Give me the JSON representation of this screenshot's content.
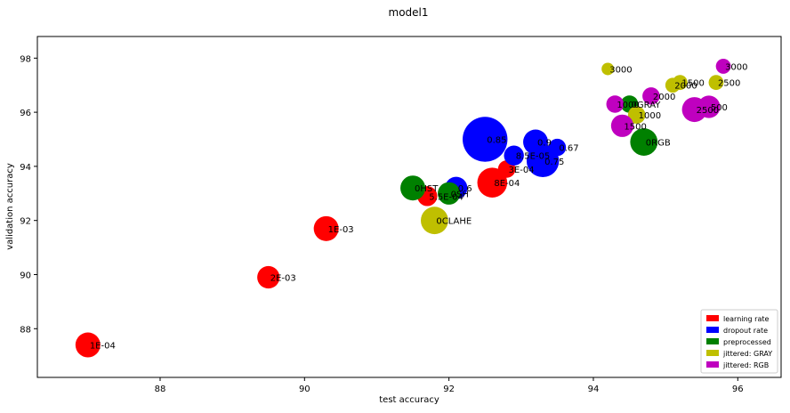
{
  "chart_data": {
    "type": "scatter",
    "title": "model1",
    "xlabel": "test accuracy",
    "ylabel": "validation accuracy",
    "xlim": [
      86.3,
      96.6
    ],
    "ylim": [
      86.2,
      98.8
    ],
    "xticks": [
      "88",
      "90",
      "92",
      "94",
      "96"
    ],
    "yticks": [
      "88",
      "90",
      "92",
      "94",
      "96",
      "98"
    ],
    "grid": false,
    "legend_position": "bottom-right",
    "series": [
      {
        "name": "learning rate",
        "color": "#ff0000",
        "points": [
          {
            "x": 87.0,
            "y": 87.4,
            "size": 1.0,
            "label": "1E-04"
          },
          {
            "x": 89.5,
            "y": 89.9,
            "size": 0.9,
            "label": "2E-03"
          },
          {
            "x": 90.3,
            "y": 91.7,
            "size": 1.0,
            "label": "1E-03"
          },
          {
            "x": 91.7,
            "y": 92.9,
            "size": 0.8,
            "label": "5.5E-04"
          },
          {
            "x": 92.6,
            "y": 93.4,
            "size": 1.2,
            "label": "8E-04"
          },
          {
            "x": 92.8,
            "y": 93.9,
            "size": 0.7,
            "label": "3E-04"
          }
        ]
      },
      {
        "name": "dropout rate",
        "color": "#0000ff",
        "points": [
          {
            "x": 92.5,
            "y": 95.0,
            "size": 1.8,
            "label": "0.85"
          },
          {
            "x": 92.1,
            "y": 93.2,
            "size": 0.9,
            "label": "0.6"
          },
          {
            "x": 92.9,
            "y": 94.4,
            "size": 0.8,
            "label": "8.5E-05"
          },
          {
            "x": 93.2,
            "y": 94.9,
            "size": 1.0,
            "label": "0.9"
          },
          {
            "x": 93.5,
            "y": 94.7,
            "size": 0.7,
            "label": "0.67"
          },
          {
            "x": 93.3,
            "y": 94.2,
            "size": 1.3,
            "label": "0.75"
          }
        ]
      },
      {
        "name": "preprocessed",
        "color": "#008000",
        "points": [
          {
            "x": 91.5,
            "y": 93.2,
            "size": 1.0,
            "label": "0HST"
          },
          {
            "x": 92.0,
            "y": 93.0,
            "size": 0.9,
            "label": "0SH"
          },
          {
            "x": 94.5,
            "y": 96.3,
            "size": 0.7,
            "label": "0GRAY"
          },
          {
            "x": 94.7,
            "y": 94.9,
            "size": 1.1,
            "label": "0RGB"
          }
        ]
      },
      {
        "name": "jittered: GRAY",
        "color": "#bfbf00",
        "points": [
          {
            "x": 91.8,
            "y": 92.0,
            "size": 1.1,
            "label": "0CLAHE"
          },
          {
            "x": 94.2,
            "y": 97.6,
            "size": 0.5,
            "label": "3000"
          },
          {
            "x": 94.6,
            "y": 95.9,
            "size": 0.7,
            "label": "1000"
          },
          {
            "x": 95.1,
            "y": 97.0,
            "size": 0.6,
            "label": "2000"
          },
          {
            "x": 95.2,
            "y": 97.1,
            "size": 0.6,
            "label": "1500"
          },
          {
            "x": 95.7,
            "y": 97.1,
            "size": 0.6,
            "label": "2500"
          }
        ]
      },
      {
        "name": "jittered: RGB",
        "color": "#bf00bf",
        "points": [
          {
            "x": 94.3,
            "y": 96.3,
            "size": 0.7,
            "label": "1000"
          },
          {
            "x": 94.4,
            "y": 95.5,
            "size": 0.9,
            "label": "1500"
          },
          {
            "x": 94.8,
            "y": 96.6,
            "size": 0.7,
            "label": "2000"
          },
          {
            "x": 95.4,
            "y": 96.1,
            "size": 1.0,
            "label": "2500"
          },
          {
            "x": 95.6,
            "y": 96.2,
            "size": 0.9,
            "label": "500"
          },
          {
            "x": 95.8,
            "y": 97.7,
            "size": 0.6,
            "label": "3000"
          }
        ]
      }
    ]
  }
}
